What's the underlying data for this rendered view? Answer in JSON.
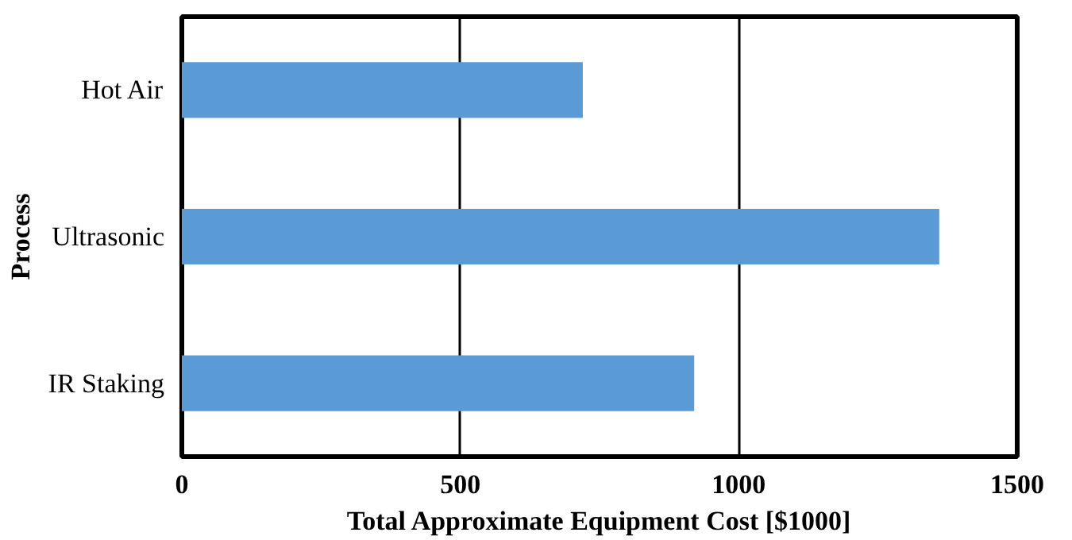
{
  "chart_data": {
    "type": "bar",
    "orientation": "horizontal",
    "xlabel": "Total Approximate Equipment Cost [$1000]",
    "ylabel": "Process",
    "categories": [
      "Hot Air",
      "Ultrasonic",
      "IR Staking"
    ],
    "values": [
      720,
      1360,
      920
    ],
    "color": "#5b9bd5",
    "xlim": [
      0,
      1500
    ],
    "xticks": [
      0,
      500,
      1000,
      1500
    ],
    "grid": "x"
  }
}
